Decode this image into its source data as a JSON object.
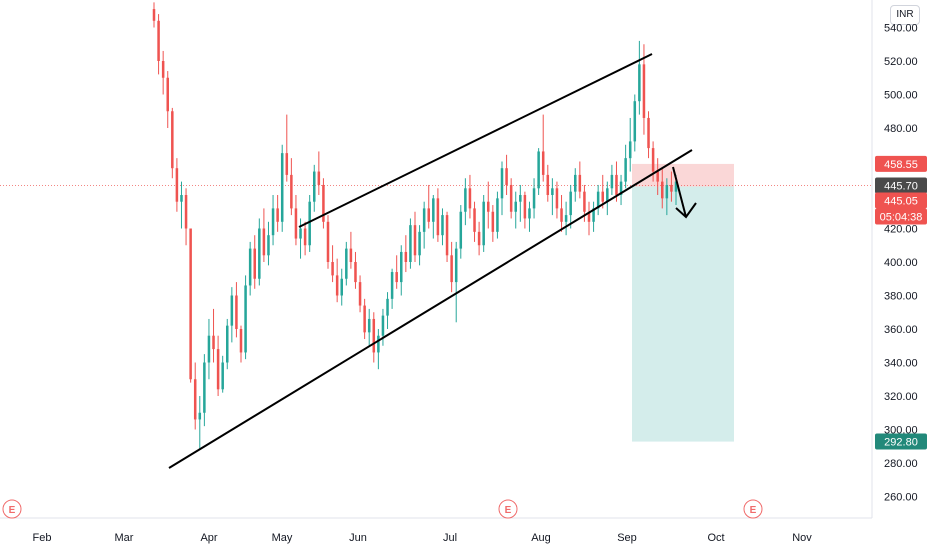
{
  "currency": "INR",
  "colors": {
    "up": "#26a69a",
    "down": "#ef5350",
    "stop_zone": "#f8c9c9",
    "target_zone": "#cdeae8",
    "last_price": "#4a4a4a",
    "entry_price": "#ef5350",
    "countdown": "#ef5350",
    "target_badge": "#22897a",
    "event": "#f06b6b"
  },
  "chart_data": {
    "type": "candlestick",
    "x_ticks": [
      "Feb",
      "Mar",
      "Apr",
      "May",
      "Jun",
      "Jul",
      "Aug",
      "Sep",
      "Oct",
      "Nov"
    ],
    "y_ticks": [
      "540.00",
      "520.00",
      "500.00",
      "480.00",
      "460.00",
      "420.00",
      "400.00",
      "380.00",
      "360.00",
      "340.00",
      "320.00",
      "300.00",
      "280.00",
      "260.00"
    ],
    "ylim": [
      248,
      552
    ],
    "price_labels": {
      "stop": "458.55",
      "last": "445.70",
      "entry": "445.05",
      "countdown": "05:04:38",
      "target": "292.80"
    },
    "levels": {
      "stop": 458.55,
      "last": 445.7,
      "entry": 445.05,
      "target": 292.8
    },
    "events": [
      "E",
      "E",
      "E"
    ],
    "candles": [
      [
        551,
        555,
        540,
        544
      ],
      [
        544,
        548,
        512,
        520
      ],
      [
        520,
        526,
        500,
        510
      ],
      [
        510,
        514,
        480,
        490
      ],
      [
        490,
        492,
        450,
        456
      ],
      [
        456,
        462,
        430,
        436
      ],
      [
        436,
        448,
        420,
        440
      ],
      [
        440,
        444,
        410,
        420
      ],
      [
        420,
        420,
        328,
        330
      ],
      [
        330,
        340,
        300,
        306
      ],
      [
        306,
        320,
        288,
        310
      ],
      [
        310,
        345,
        302,
        340
      ],
      [
        340,
        366,
        330,
        356
      ],
      [
        356,
        372,
        340,
        348
      ],
      [
        348,
        356,
        320,
        324
      ],
      [
        324,
        344,
        322,
        340
      ],
      [
        340,
        366,
        336,
        362
      ],
      [
        362,
        385,
        352,
        380
      ],
      [
        380,
        388,
        355,
        360
      ],
      [
        360,
        362,
        340,
        346
      ],
      [
        346,
        392,
        342,
        386
      ],
      [
        386,
        412,
        380,
        408
      ],
      [
        408,
        416,
        384,
        390
      ],
      [
        390,
        426,
        386,
        420
      ],
      [
        420,
        432,
        400,
        404
      ],
      [
        404,
        424,
        398,
        416
      ],
      [
        416,
        440,
        410,
        432
      ],
      [
        432,
        440,
        418,
        424
      ],
      [
        424,
        470,
        418,
        465
      ],
      [
        465,
        488,
        448,
        452
      ],
      [
        452,
        462,
        428,
        432
      ],
      [
        432,
        440,
        410,
        414
      ],
      [
        414,
        426,
        402,
        420
      ],
      [
        420,
        424,
        404,
        410
      ],
      [
        410,
        440,
        406,
        436
      ],
      [
        436,
        458,
        430,
        454
      ],
      [
        454,
        466,
        440,
        446
      ],
      [
        446,
        450,
        420,
        424
      ],
      [
        424,
        428,
        396,
        400
      ],
      [
        400,
        410,
        388,
        392
      ],
      [
        392,
        402,
        376,
        380
      ],
      [
        380,
        396,
        374,
        390
      ],
      [
        390,
        412,
        386,
        408
      ],
      [
        408,
        418,
        396,
        400
      ],
      [
        400,
        406,
        384,
        388
      ],
      [
        388,
        392,
        370,
        374
      ],
      [
        374,
        378,
        354,
        358
      ],
      [
        358,
        372,
        350,
        366
      ],
      [
        366,
        370,
        340,
        346
      ],
      [
        346,
        360,
        336,
        356
      ],
      [
        356,
        372,
        350,
        368
      ],
      [
        368,
        382,
        360,
        378
      ],
      [
        378,
        396,
        372,
        394
      ],
      [
        394,
        404,
        384,
        388
      ],
      [
        388,
        410,
        380,
        406
      ],
      [
        406,
        416,
        394,
        400
      ],
      [
        400,
        426,
        396,
        422
      ],
      [
        422,
        430,
        400,
        404
      ],
      [
        404,
        422,
        398,
        418
      ],
      [
        418,
        436,
        408,
        432
      ],
      [
        432,
        446,
        420,
        424
      ],
      [
        424,
        440,
        414,
        438
      ],
      [
        438,
        444,
        412,
        416
      ],
      [
        416,
        432,
        410,
        428
      ],
      [
        428,
        430,
        400,
        404
      ],
      [
        404,
        412,
        382,
        388
      ],
      [
        388,
        412,
        364,
        408
      ],
      [
        408,
        434,
        402,
        430
      ],
      [
        430,
        450,
        422,
        444
      ],
      [
        444,
        452,
        426,
        432
      ],
      [
        432,
        436,
        412,
        418
      ],
      [
        418,
        424,
        404,
        410
      ],
      [
        410,
        440,
        406,
        436
      ],
      [
        436,
        448,
        420,
        430
      ],
      [
        430,
        434,
        412,
        418
      ],
      [
        418,
        442,
        414,
        438
      ],
      [
        438,
        460,
        428,
        456
      ],
      [
        456,
        464,
        440,
        446
      ],
      [
        446,
        450,
        426,
        430
      ],
      [
        430,
        442,
        420,
        436
      ],
      [
        436,
        446,
        424,
        440
      ],
      [
        440,
        442,
        420,
        426
      ],
      [
        426,
        436,
        418,
        432
      ],
      [
        432,
        450,
        426,
        444
      ],
      [
        444,
        468,
        440,
        466
      ],
      [
        466,
        488,
        448,
        452
      ],
      [
        452,
        458,
        436,
        440
      ],
      [
        440,
        450,
        428,
        444
      ],
      [
        444,
        448,
        426,
        432
      ],
      [
        432,
        440,
        418,
        424
      ],
      [
        424,
        436,
        416,
        428
      ],
      [
        428,
        446,
        420,
        442
      ],
      [
        442,
        456,
        436,
        452
      ],
      [
        452,
        460,
        438,
        442
      ],
      [
        442,
        446,
        424,
        430
      ],
      [
        430,
        436,
        416,
        424
      ],
      [
        424,
        436,
        418,
        432
      ],
      [
        432,
        446,
        428,
        442
      ],
      [
        442,
        452,
        432,
        436
      ],
      [
        436,
        448,
        428,
        444
      ],
      [
        444,
        458,
        440,
        452
      ],
      [
        452,
        460,
        436,
        440
      ],
      [
        440,
        452,
        434,
        448
      ],
      [
        448,
        470,
        444,
        462
      ],
      [
        462,
        486,
        454,
        472
      ],
      [
        472,
        500,
        466,
        496
      ],
      [
        496,
        532,
        488,
        518
      ],
      [
        518,
        530,
        476,
        486
      ],
      [
        486,
        490,
        462,
        468
      ],
      [
        468,
        472,
        448,
        454
      ],
      [
        454,
        462,
        440,
        448
      ],
      [
        448,
        456,
        432,
        438
      ],
      [
        438,
        450,
        428,
        446
      ],
      [
        446,
        454,
        436,
        442
      ],
      [
        442,
        452,
        434,
        448
      ]
    ]
  }
}
